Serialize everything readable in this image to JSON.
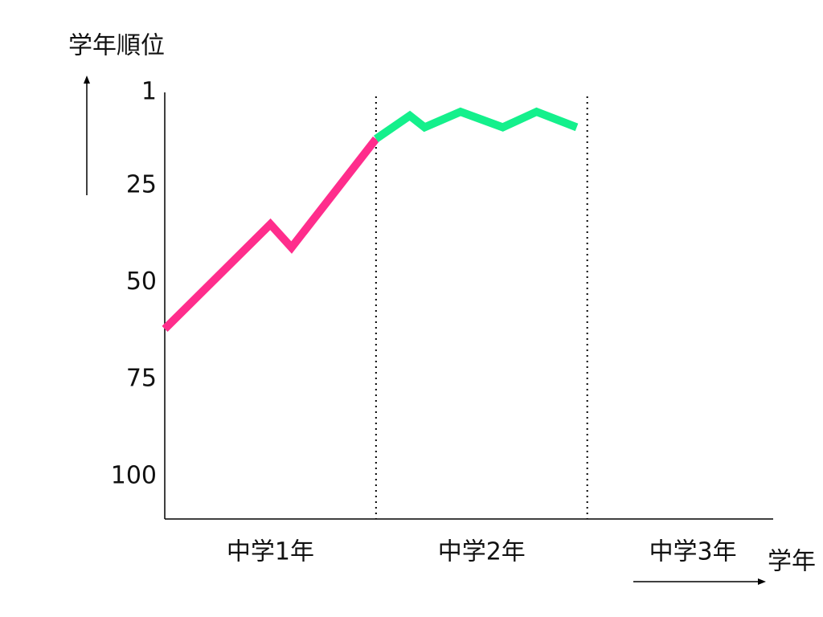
{
  "chart_data": {
    "type": "line",
    "y_label": "学年順位",
    "x_label": "学年",
    "categories": [
      "中学1年",
      "中学2年",
      "中学3年"
    ],
    "xlim": [
      0,
      2.88
    ],
    "xticks": [
      1,
      2
    ],
    "ylim": [
      111,
      1
    ],
    "yticks": [
      1,
      25,
      50,
      75,
      100
    ],
    "series": [
      {
        "color": "#ff2d8c",
        "x": [
          0,
          0.5,
          0.6,
          1.0
        ],
        "values": [
          62,
          35,
          41,
          13
        ]
      },
      {
        "color": "#14f08c",
        "x": [
          1.0,
          1.16,
          1.23,
          1.4,
          1.6,
          1.76,
          1.95
        ],
        "values": [
          13,
          7,
          10,
          6,
          10,
          6,
          10
        ]
      }
    ]
  }
}
